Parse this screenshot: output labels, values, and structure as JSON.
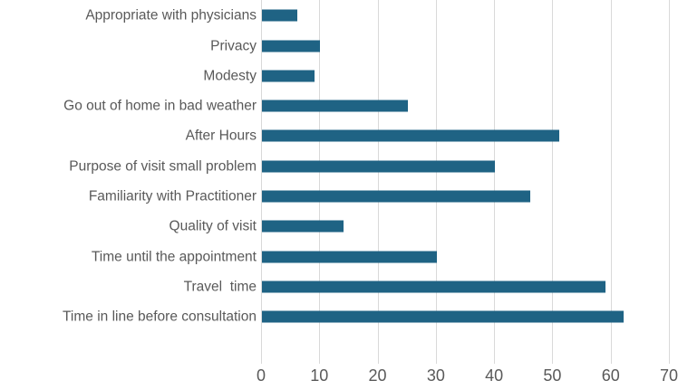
{
  "chart_data": {
    "type": "bar",
    "orientation": "horizontal",
    "title": "",
    "xlabel": "",
    "ylabel": "",
    "categories": [
      "Appropriate with physicians",
      "Privacy",
      "Modesty",
      "Go out of home in bad weather",
      "After Hours",
      "Purpose of visit small problem",
      "Familiarity with Practitioner",
      "Quality of visit",
      "Time until the appointment",
      "Travel  time",
      "Time in line before consultation"
    ],
    "values": [
      6,
      10,
      9,
      25,
      51,
      40,
      46,
      14,
      30,
      59,
      62
    ],
    "xlim": [
      0,
      70
    ],
    "xticks": [
      "0",
      "10",
      "20",
      "30",
      "40",
      "50",
      "60",
      "70"
    ],
    "grid": true,
    "legend": false,
    "colors": {
      "bar": "#1f6384",
      "gridline": "#d9d9d9",
      "text": "#595959",
      "background": "#ffffff"
    }
  }
}
